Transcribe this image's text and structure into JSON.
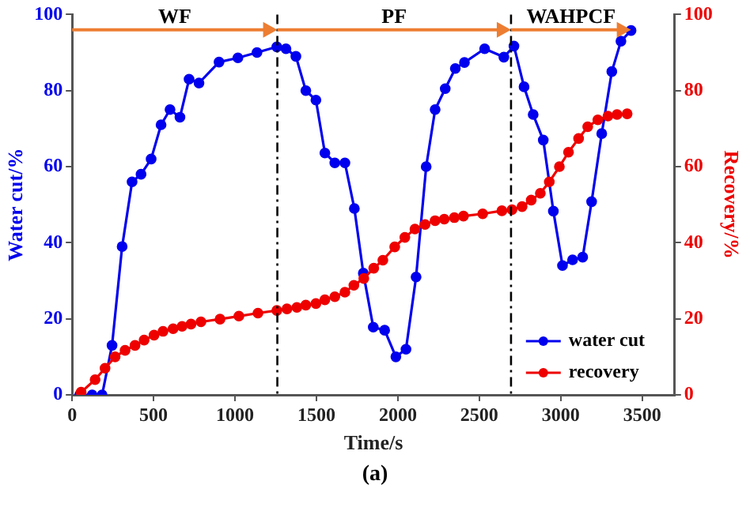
{
  "chart_data": {
    "type": "line",
    "xlabel": "Time/s",
    "ylabel": "Water cut/%",
    "y2label": "Recovery/%",
    "xlim": [
      0,
      3700
    ],
    "xticks": [
      0,
      500,
      1000,
      1500,
      2000,
      2500,
      3000,
      3500
    ],
    "ylim": [
      0,
      100
    ],
    "yticks": [
      0,
      20,
      40,
      60,
      80,
      100
    ],
    "y2lim": [
      0,
      100
    ],
    "y2ticks": [
      0,
      20,
      40,
      60,
      80,
      100
    ],
    "grid": false,
    "legend": "bottom right",
    "marker": "circle",
    "line_style": "solid",
    "series": [
      {
        "name": "water cut",
        "color": "#0000ee",
        "x": [
          46,
          123,
          184,
          245,
          307,
          368,
          423,
          485,
          546,
          601,
          662,
          718,
          779,
          902,
          1018,
          1135,
          1257,
          1313,
          1374,
          1435,
          1497,
          1552,
          1613,
          1675,
          1733,
          1788,
          1849,
          1919,
          1988,
          2050,
          2112,
          2174,
          2229,
          2291,
          2353,
          2409,
          2533,
          2651,
          2713,
          2775,
          2831,
          2893,
          2955,
          3011,
          3073,
          3135,
          3190,
          3252,
          3314,
          3370,
          3432
        ],
        "values": [
          0,
          0,
          0,
          13,
          39,
          56,
          58,
          62,
          71,
          75,
          73,
          83,
          82,
          87.5,
          88.6,
          90,
          91.5,
          91,
          89,
          80,
          77.5,
          63.6,
          61,
          61,
          49,
          32,
          17.8,
          17,
          10,
          12,
          31,
          60,
          75,
          80.5,
          85.8,
          87.4,
          91,
          88.8,
          91.7,
          81,
          73.7,
          67,
          48.3,
          34,
          35.5,
          36.2,
          50.8,
          68.7,
          85,
          93,
          95.8
        ]
      },
      {
        "name": "recovery",
        "color": "#ee0000",
        "axis": "y2",
        "x": [
          55,
          141,
          202,
          264,
          325,
          386,
          442,
          503,
          558,
          620,
          675,
          730,
          791,
          908,
          1024,
          1141,
          1257,
          1319,
          1380,
          1435,
          1497,
          1552,
          1613,
          1675,
          1730,
          1791,
          1852,
          1908,
          1981,
          2043,
          2105,
          2167,
          2229,
          2285,
          2347,
          2403,
          2521,
          2639,
          2701,
          2763,
          2819,
          2875,
          2930,
          2992,
          3048,
          3110,
          3166,
          3228,
          3290,
          3346,
          3408
        ],
        "values": [
          0.7,
          4,
          7,
          10,
          11.7,
          13,
          14.4,
          15.7,
          16.7,
          17.4,
          18,
          18.6,
          19.2,
          19.9,
          20.7,
          21.5,
          22.2,
          22.6,
          23,
          23.6,
          24,
          25,
          25.8,
          27,
          28.8,
          30.6,
          33.3,
          35.4,
          38.9,
          41.4,
          43.6,
          44.8,
          45.8,
          46.2,
          46.6,
          47,
          47.6,
          48.4,
          48.7,
          49.5,
          51.2,
          53,
          56,
          60,
          63.8,
          67.4,
          70.5,
          72.3,
          73.3,
          73.7,
          73.9
        ]
      }
    ],
    "ref_lines": [
      {
        "axis": "x",
        "value": 1260,
        "color": "#000000",
        "line_style": "dashdot"
      },
      {
        "axis": "x",
        "value": 2695,
        "color": "#000000",
        "line_style": "dashdot"
      }
    ],
    "annotations": [
      "WF",
      "PF",
      "WAHPCF",
      "(a)"
    ]
  }
}
